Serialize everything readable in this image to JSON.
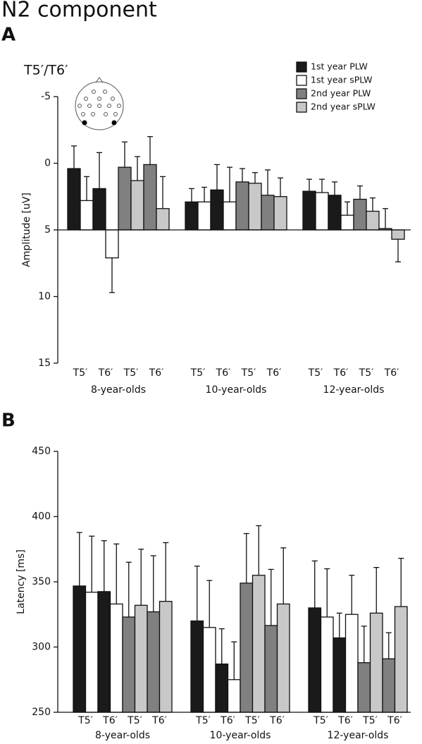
{
  "title": "N2 component",
  "chart_data": [
    {
      "type": "bar",
      "panel": "A",
      "subtitle": "T5′/T6′",
      "y_label": "Amplitude [uV]",
      "ylim": [
        -5,
        15
      ],
      "yticks": [
        -5,
        0,
        5,
        10,
        15
      ],
      "y_inverted": true,
      "bar_base": 5,
      "legend": true,
      "categories": [
        "T5′",
        "T6′",
        "T5′",
        "T6′",
        "T5′",
        "T6′",
        "T5′",
        "T6′",
        "T5′",
        "T6′",
        "T5′",
        "T6′"
      ],
      "groups": [
        "8-year-olds",
        "10-year-olds",
        "12-year-olds"
      ],
      "series": [
        {
          "name": "1st year PLW",
          "color": "#1a1a1a",
          "values": [
            0.4,
            1.9,
            null,
            null,
            2.9,
            2.0,
            null,
            null,
            2.1,
            2.4,
            null,
            null
          ],
          "errors": [
            1.7,
            2.7,
            null,
            null,
            1.0,
            1.9,
            null,
            null,
            0.9,
            1.0,
            null,
            null
          ]
        },
        {
          "name": "1st year sPLW",
          "color": "#ffffff",
          "values": [
            2.8,
            7.1,
            null,
            null,
            2.9,
            2.9,
            null,
            null,
            2.2,
            3.9,
            null,
            null
          ],
          "errors": [
            1.8,
            2.6,
            null,
            null,
            1.1,
            2.6,
            null,
            null,
            1.0,
            1.0,
            null,
            null
          ]
        },
        {
          "name": "2nd year PLW",
          "color": "#808080",
          "values": [
            null,
            null,
            0.3,
            0.1,
            null,
            null,
            1.4,
            2.4,
            null,
            null,
            2.7,
            4.9
          ],
          "errors": [
            null,
            null,
            1.9,
            2.1,
            null,
            null,
            1.0,
            1.9,
            null,
            null,
            1.0,
            1.5
          ]
        },
        {
          "name": "2nd year sPLW",
          "color": "#c8c8c8",
          "values": [
            null,
            null,
            1.3,
            3.4,
            null,
            null,
            1.5,
            2.5,
            null,
            null,
            3.6,
            5.7
          ],
          "errors": [
            null,
            null,
            1.8,
            2.4,
            null,
            null,
            0.8,
            1.4,
            null,
            null,
            1.0,
            1.7
          ]
        }
      ]
    },
    {
      "type": "bar",
      "panel": "B",
      "y_label": "Latency [ms]",
      "ylim": [
        250,
        450
      ],
      "yticks": [
        250,
        300,
        350,
        400,
        450
      ],
      "y_inverted": false,
      "legend": false,
      "categories": [
        "T5′",
        "T6′",
        "T5′",
        "T6′",
        "T5′",
        "T6′",
        "T5′",
        "T6′",
        "T5′",
        "T6′",
        "T5′",
        "T6′"
      ],
      "groups": [
        "8-year-olds",
        "10-year-olds",
        "12-year-olds"
      ],
      "series": [
        {
          "color": "#1a1a1a",
          "values": [
            346.8,
            342.5,
            null,
            null,
            320,
            287,
            null,
            null,
            330,
            307,
            null,
            null
          ],
          "errors": [
            41,
            39,
            null,
            null,
            42,
            27,
            null,
            null,
            36,
            19,
            null,
            null
          ]
        },
        {
          "color": "#ffffff",
          "values": [
            342,
            333,
            null,
            null,
            315,
            275,
            null,
            null,
            323,
            325,
            null,
            null
          ],
          "errors": [
            43,
            46,
            null,
            null,
            36,
            29,
            null,
            null,
            37,
            30,
            null,
            null
          ]
        },
        {
          "color": "#808080",
          "values": [
            null,
            null,
            323,
            327,
            null,
            null,
            349,
            316.5,
            null,
            null,
            288,
            291
          ],
          "errors": [
            null,
            null,
            42,
            43,
            null,
            null,
            38,
            43,
            null,
            null,
            28,
            20
          ]
        },
        {
          "color": "#c8c8c8",
          "values": [
            null,
            null,
            332,
            335,
            null,
            null,
            355,
            333,
            null,
            null,
            326,
            331
          ],
          "errors": [
            null,
            null,
            43,
            45,
            null,
            null,
            38,
            43,
            null,
            null,
            35,
            37
          ]
        }
      ]
    }
  ]
}
